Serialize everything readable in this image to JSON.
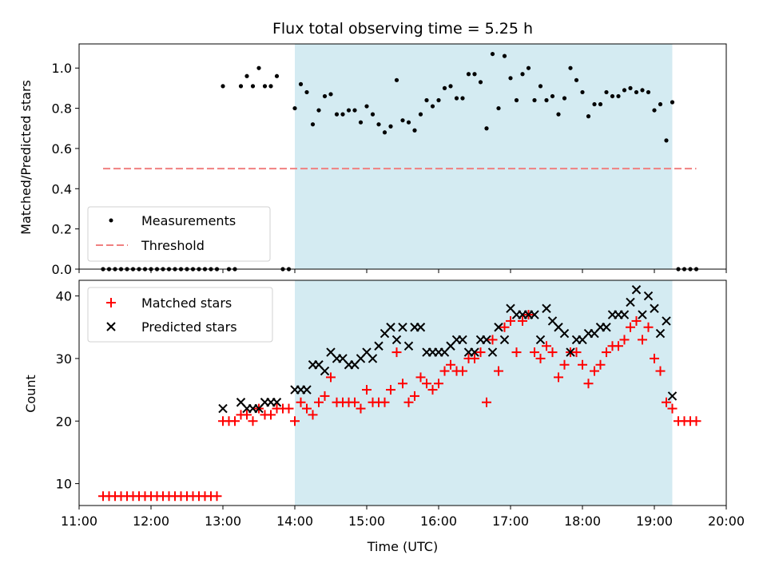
{
  "chart_data": [
    {
      "type": "scatter",
      "title": "Flux total observing time = 5.25 h",
      "ylabel": "Matched/Predicted stars",
      "xlabel": "",
      "ylim": [
        0,
        1.12
      ],
      "yticks": [
        "0.0",
        "0.2",
        "0.4",
        "0.6",
        "0.8",
        "1.0"
      ],
      "highlight_span": [
        "14:00",
        "19:15"
      ],
      "threshold": {
        "name": "Threshold",
        "value": 0.5,
        "x_range": [
          "11:20",
          "19:35"
        ],
        "color": "#f08080"
      },
      "legend": {
        "position": "lower-left",
        "entries": [
          "Measurements",
          "Threshold"
        ]
      },
      "series": [
        {
          "name": "Measurements",
          "marker": "dot",
          "color": "#000000",
          "x": [
            "11:20",
            "11:25",
            "11:30",
            "11:35",
            "11:40",
            "11:45",
            "11:50",
            "11:55",
            "12:00",
            "12:05",
            "12:10",
            "12:15",
            "12:20",
            "12:25",
            "12:30",
            "12:35",
            "12:40",
            "12:45",
            "12:50",
            "12:55",
            "13:00",
            "13:05",
            "13:10",
            "13:15",
            "13:20",
            "13:25",
            "13:30",
            "13:35",
            "13:40",
            "13:45",
            "13:50",
            "13:55",
            "14:00",
            "14:05",
            "14:10",
            "14:15",
            "14:20",
            "14:25",
            "14:30",
            "14:35",
            "14:40",
            "14:45",
            "14:50",
            "14:55",
            "15:00",
            "15:05",
            "15:10",
            "15:15",
            "15:20",
            "15:25",
            "15:30",
            "15:35",
            "15:40",
            "15:45",
            "15:50",
            "15:55",
            "16:00",
            "16:05",
            "16:10",
            "16:15",
            "16:20",
            "16:25",
            "16:30",
            "16:35",
            "16:40",
            "16:45",
            "16:50",
            "16:55",
            "17:00",
            "17:05",
            "17:10",
            "17:15",
            "17:20",
            "17:25",
            "17:30",
            "17:35",
            "17:40",
            "17:45",
            "17:50",
            "17:55",
            "18:00",
            "18:05",
            "18:10",
            "18:15",
            "18:20",
            "18:25",
            "18:30",
            "18:35",
            "18:40",
            "18:45",
            "18:50",
            "18:55",
            "19:00",
            "19:05",
            "19:10",
            "19:15",
            "19:20",
            "19:25",
            "19:30",
            "19:35"
          ],
          "y": [
            0,
            0,
            0,
            0,
            0,
            0,
            0,
            0,
            0,
            0,
            0,
            0,
            0,
            0,
            0,
            0,
            0,
            0,
            0,
            0,
            0.91,
            0,
            0,
            0.91,
            0.96,
            0.91,
            1.0,
            0.91,
            0.91,
            0.96,
            0,
            0,
            0.8,
            0.92,
            0.88,
            0.72,
            0.79,
            0.86,
            0.87,
            0.77,
            0.77,
            0.79,
            0.79,
            0.73,
            0.81,
            0.77,
            0.72,
            0.68,
            0.71,
            0.94,
            0.74,
            0.73,
            0.69,
            0.77,
            0.84,
            0.81,
            0.84,
            0.9,
            0.91,
            0.85,
            0.85,
            0.97,
            0.97,
            0.93,
            0.7,
            1.07,
            0.8,
            1.06,
            0.95,
            0.84,
            0.97,
            1.0,
            0.84,
            0.91,
            0.84,
            0.86,
            0.77,
            0.85,
            1.0,
            0.94,
            0.88,
            0.76,
            0.82,
            0.82,
            0.88,
            0.86,
            0.86,
            0.89,
            0.9,
            0.88,
            0.89,
            0.88,
            0.79,
            0.82,
            0.64,
            0.83,
            0,
            0,
            0,
            0
          ]
        }
      ]
    },
    {
      "type": "scatter",
      "title": "",
      "xlabel": "Time (UTC)",
      "ylabel": "Count",
      "xlim": [
        "11:00",
        "20:00"
      ],
      "ylim": [
        6.5,
        42.5
      ],
      "xticks": [
        "11:00",
        "12:00",
        "13:00",
        "14:00",
        "15:00",
        "16:00",
        "17:00",
        "18:00",
        "19:00",
        "20:00"
      ],
      "yticks": [
        "10",
        "20",
        "30",
        "40"
      ],
      "highlight_span": [
        "14:00",
        "19:15"
      ],
      "legend": {
        "position": "upper-left",
        "entries": [
          "Matched stars",
          "Predicted stars"
        ]
      },
      "series": [
        {
          "name": "Matched stars",
          "marker": "plus",
          "color": "#ff0000",
          "x": [
            "11:20",
            "11:25",
            "11:30",
            "11:35",
            "11:40",
            "11:45",
            "11:50",
            "11:55",
            "12:00",
            "12:05",
            "12:10",
            "12:15",
            "12:20",
            "12:25",
            "12:30",
            "12:35",
            "12:40",
            "12:45",
            "12:50",
            "12:55",
            "13:00",
            "13:05",
            "13:10",
            "13:15",
            "13:20",
            "13:25",
            "13:30",
            "13:35",
            "13:40",
            "13:45",
            "13:50",
            "13:55",
            "14:00",
            "14:05",
            "14:10",
            "14:15",
            "14:20",
            "14:25",
            "14:30",
            "14:35",
            "14:40",
            "14:45",
            "14:50",
            "14:55",
            "15:00",
            "15:05",
            "15:10",
            "15:15",
            "15:20",
            "15:25",
            "15:30",
            "15:35",
            "15:40",
            "15:45",
            "15:50",
            "15:55",
            "16:00",
            "16:05",
            "16:10",
            "16:15",
            "16:20",
            "16:25",
            "16:30",
            "16:35",
            "16:40",
            "16:45",
            "16:50",
            "16:55",
            "17:00",
            "17:05",
            "17:10",
            "17:15",
            "17:20",
            "17:25",
            "17:30",
            "17:35",
            "17:40",
            "17:45",
            "17:50",
            "17:55",
            "18:00",
            "18:05",
            "18:10",
            "18:15",
            "18:20",
            "18:25",
            "18:30",
            "18:35",
            "18:40",
            "18:45",
            "18:50",
            "18:55",
            "19:00",
            "19:05",
            "19:10",
            "19:15",
            "19:20",
            "19:25",
            "19:30",
            "19:35"
          ],
          "y": [
            8,
            8,
            8,
            8,
            8,
            8,
            8,
            8,
            8,
            8,
            8,
            8,
            8,
            8,
            8,
            8,
            8,
            8,
            8,
            8,
            20,
            20,
            20,
            21,
            21,
            20,
            22,
            21,
            21,
            22,
            22,
            22,
            20,
            23,
            22,
            21,
            23,
            24,
            27,
            23,
            23,
            23,
            23,
            22,
            25,
            23,
            23,
            23,
            25,
            31,
            26,
            23,
            24,
            27,
            26,
            25,
            26,
            28,
            29,
            28,
            28,
            30,
            30,
            31,
            23,
            33,
            28,
            35,
            36,
            31,
            36,
            37,
            31,
            30,
            32,
            31,
            27,
            29,
            31,
            31,
            29,
            26,
            28,
            29,
            31,
            32,
            32,
            33,
            35,
            36,
            33,
            35,
            30,
            28,
            23,
            22,
            20,
            20,
            20,
            20
          ]
        },
        {
          "name": "Predicted stars",
          "marker": "x",
          "color": "#000000",
          "x": [
            "13:00",
            "13:15",
            "13:20",
            "13:25",
            "13:30",
            "13:35",
            "13:40",
            "13:45",
            "13:50",
            "14:00",
            "14:05",
            "14:10",
            "14:15",
            "14:20",
            "14:25",
            "14:30",
            "14:35",
            "14:40",
            "14:45",
            "14:50",
            "14:55",
            "15:00",
            "15:05",
            "15:10",
            "15:15",
            "15:20",
            "15:25",
            "15:30",
            "15:35",
            "15:40",
            "15:45",
            "15:50",
            "15:55",
            "16:00",
            "16:05",
            "16:10",
            "16:15",
            "16:20",
            "16:25",
            "16:30",
            "16:35",
            "16:40",
            "16:45",
            "16:50",
            "16:55",
            "17:00",
            "17:05",
            "17:10",
            "17:15",
            "17:20",
            "17:25",
            "17:30",
            "17:35",
            "17:40",
            "17:45",
            "17:50",
            "17:55",
            "18:00",
            "18:05",
            "18:10",
            "18:15",
            "18:20",
            "18:25",
            "18:30",
            "18:35",
            "18:40",
            "18:45",
            "18:50",
            "18:55",
            "19:00",
            "19:05",
            "19:10",
            "19:15",
            "19:20"
          ],
          "y": [
            22,
            23,
            22,
            22,
            22,
            23,
            23,
            23,
            null,
            25,
            25,
            25,
            29,
            29,
            28,
            31,
            30,
            30,
            29,
            29,
            30,
            31,
            30,
            32,
            34,
            35,
            33,
            35,
            32,
            35,
            35,
            31,
            31,
            31,
            31,
            32,
            33,
            33,
            31,
            31,
            33,
            33,
            31,
            35,
            33,
            38,
            37,
            37,
            37,
            37,
            33,
            38,
            36,
            35,
            34,
            31,
            33,
            33,
            34,
            34,
            35,
            35,
            37,
            37,
            37,
            39,
            41,
            37,
            40,
            38,
            34,
            36,
            24,
            null
          ]
        }
      ]
    }
  ]
}
